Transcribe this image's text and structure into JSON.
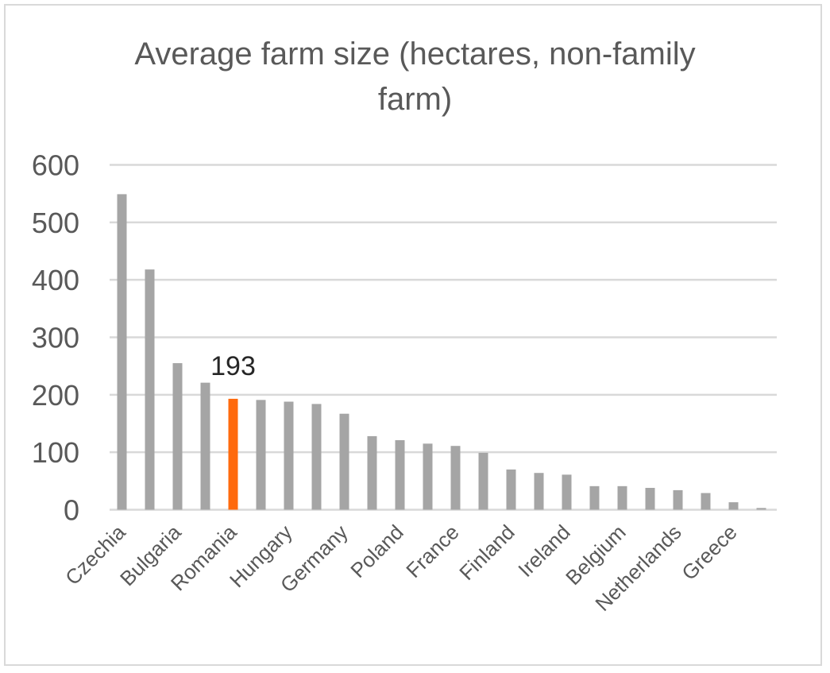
{
  "chart_data": {
    "type": "bar",
    "title_line1": "Average farm size (hectares, non-family",
    "title_line2": "farm)",
    "xlabel": "",
    "ylabel": "",
    "ylim": [
      0,
      600
    ],
    "yticks": [
      "0",
      "100",
      "200",
      "300",
      "400",
      "500",
      "600"
    ],
    "grid": true,
    "categories": [
      "Czechia",
      "",
      "Bulgaria",
      "",
      "Romania",
      "",
      "Hungary",
      "",
      "Germany",
      "",
      "Poland",
      "",
      "France",
      "",
      "Finland",
      "",
      "Ireland",
      "",
      "Belgium",
      "",
      "Netherlands",
      "",
      "Greece",
      ""
    ],
    "values": [
      549,
      418,
      255,
      221,
      193,
      191,
      188,
      184,
      167,
      128,
      121,
      115,
      111,
      99,
      70,
      64,
      61,
      41,
      41,
      38,
      34,
      29,
      13,
      3
    ],
    "highlight_index": 4,
    "data_label": "193",
    "colors": {
      "bar": "#a5a5a5",
      "highlight": "#ff6a0d",
      "grid": "#d9d9d9",
      "text": "#595959"
    }
  }
}
